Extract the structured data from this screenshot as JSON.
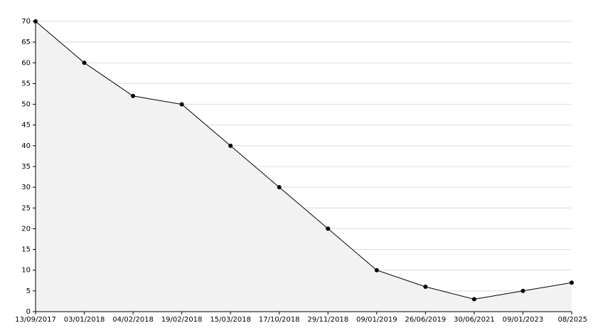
{
  "chart_data": {
    "type": "area",
    "categories": [
      "13/09/2017",
      "03/01/2018",
      "04/02/2018",
      "19/02/2018",
      "15/03/2018",
      "17/10/2018",
      "29/11/2018",
      "09/01/2019",
      "26/06/2019",
      "30/06/2021",
      "09/01/2023",
      "08/2025"
    ],
    "values": [
      70,
      60,
      52,
      50,
      40,
      30,
      20,
      10,
      6,
      3,
      5,
      7
    ],
    "color": "#000000",
    "fill_color": "#f2f2f2",
    "ylim": [
      0,
      70
    ],
    "yticks": [
      0,
      5,
      10,
      15,
      20,
      25,
      30,
      35,
      40,
      45,
      50,
      55,
      60,
      65,
      70
    ],
    "grid": true
  }
}
